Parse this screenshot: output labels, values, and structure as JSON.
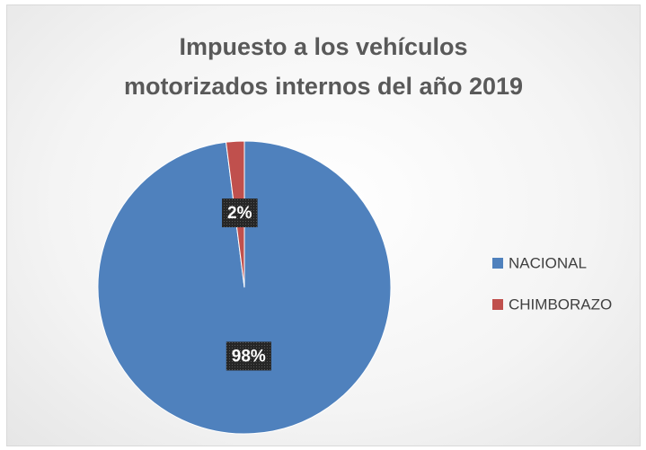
{
  "chart_data": {
    "type": "pie",
    "title": "Impuesto a los vehículos\nmotorizados internos del año 2019",
    "categories": [
      "NACIONAL",
      "CHIMBORAZO"
    ],
    "values": [
      98,
      2
    ],
    "value_labels": [
      "98%",
      "2%"
    ],
    "colors": [
      "#4f81bd",
      "#c0504d"
    ],
    "legend": "right"
  }
}
